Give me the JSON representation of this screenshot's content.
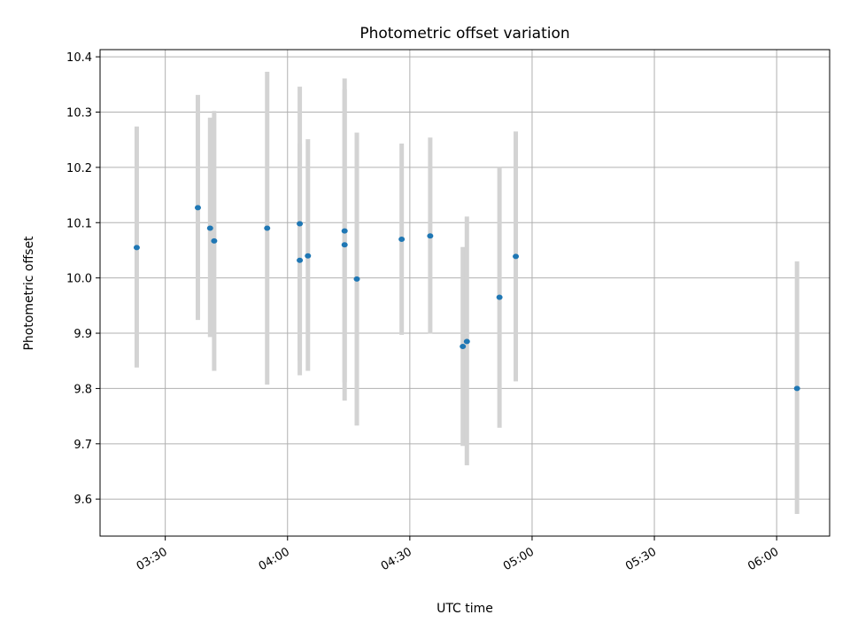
{
  "chart_data": {
    "type": "scatter",
    "title": "Photometric offset variation",
    "xlabel": "UTC time",
    "ylabel": "Photometric offset",
    "x_ticks": [
      "03:30",
      "04:00",
      "04:30",
      "05:00",
      "05:30",
      "06:00"
    ],
    "y_ticks": [
      "9.6",
      "9.7",
      "9.8",
      "9.9",
      "10.0",
      "10.1",
      "10.2",
      "10.3",
      "10.4"
    ],
    "xlim": [
      "03:14",
      "06:13"
    ],
    "ylim": [
      9.533,
      10.413
    ],
    "grid": true,
    "marker_color": "#1f77b4",
    "errorbar_color": "#d3d3d3",
    "points": [
      {
        "x": "03:23",
        "y": 10.055,
        "ylow": 9.838,
        "yhigh": 10.274
      },
      {
        "x": "03:38",
        "y": 10.127,
        "ylow": 9.924,
        "yhigh": 10.331
      },
      {
        "x": "03:41",
        "y": 10.09,
        "ylow": 9.893,
        "yhigh": 10.29
      },
      {
        "x": "03:42",
        "y": 10.067,
        "ylow": 9.832,
        "yhigh": 10.302
      },
      {
        "x": "03:55",
        "y": 10.09,
        "ylow": 9.807,
        "yhigh": 10.373
      },
      {
        "x": "04:03",
        "y": 10.032,
        "ylow": 9.824,
        "yhigh": 10.243
      },
      {
        "x": "04:03",
        "y": 10.098,
        "ylow": 9.851,
        "yhigh": 10.346
      },
      {
        "x": "04:05",
        "y": 10.04,
        "ylow": 9.832,
        "yhigh": 10.251
      },
      {
        "x": "04:14",
        "y": 10.06,
        "ylow": 9.778,
        "yhigh": 10.342
      },
      {
        "x": "04:14",
        "y": 10.085,
        "ylow": 9.811,
        "yhigh": 10.361
      },
      {
        "x": "04:17",
        "y": 9.998,
        "ylow": 9.733,
        "yhigh": 10.263
      },
      {
        "x": "04:28",
        "y": 10.07,
        "ylow": 9.897,
        "yhigh": 10.243
      },
      {
        "x": "04:35",
        "y": 10.076,
        "ylow": 9.899,
        "yhigh": 10.254
      },
      {
        "x": "04:43",
        "y": 9.876,
        "ylow": 9.696,
        "yhigh": 10.056
      },
      {
        "x": "04:44",
        "y": 9.885,
        "ylow": 9.661,
        "yhigh": 10.111
      },
      {
        "x": "04:52",
        "y": 9.965,
        "ylow": 9.729,
        "yhigh": 10.2
      },
      {
        "x": "04:56",
        "y": 10.039,
        "ylow": 9.813,
        "yhigh": 10.265
      },
      {
        "x": "06:05",
        "y": 9.8,
        "ylow": 9.573,
        "yhigh": 10.03
      }
    ]
  }
}
